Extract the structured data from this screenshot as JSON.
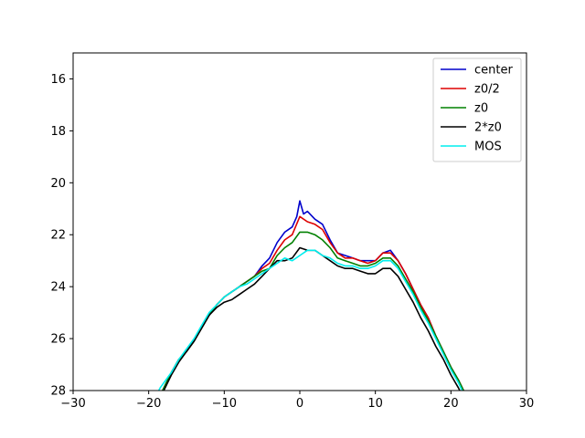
{
  "chart_data": {
    "type": "line",
    "title": "",
    "xlabel": "",
    "ylabel": "",
    "xlim": [
      -30,
      30
    ],
    "ylim": [
      28,
      15
    ],
    "y_inverted": true,
    "xticks": [
      -30,
      -20,
      -10,
      0,
      10,
      20,
      30
    ],
    "yticks": [
      16,
      18,
      20,
      22,
      24,
      26,
      28
    ],
    "grid": false,
    "legend_position": "top-right",
    "series": [
      {
        "name": "center",
        "color": "#0000cc",
        "points": [
          [
            -18.5,
            28.2
          ],
          [
            -18,
            27.9
          ],
          [
            -17,
            27.3
          ],
          [
            -16,
            26.8
          ],
          [
            -15,
            26.5
          ],
          [
            -14,
            26.1
          ],
          [
            -13,
            25.6
          ],
          [
            -12,
            25.1
          ],
          [
            -11,
            24.7
          ],
          [
            -10,
            24.4
          ],
          [
            -9,
            24.2
          ],
          [
            -8,
            24.0
          ],
          [
            -7,
            23.8
          ],
          [
            -6,
            23.6
          ],
          [
            -5,
            23.2
          ],
          [
            -4,
            22.9
          ],
          [
            -3,
            22.3
          ],
          [
            -2,
            21.9
          ],
          [
            -1,
            21.7
          ],
          [
            -0.4,
            21.3
          ],
          [
            0,
            20.7
          ],
          [
            0.5,
            21.2
          ],
          [
            1,
            21.1
          ],
          [
            2,
            21.4
          ],
          [
            3,
            21.6
          ],
          [
            4,
            22.2
          ],
          [
            5,
            22.7
          ],
          [
            6,
            22.8
          ],
          [
            7,
            22.9
          ],
          [
            8,
            23.0
          ],
          [
            9,
            23.0
          ],
          [
            10,
            23.0
          ],
          [
            11,
            22.7
          ],
          [
            12,
            22.6
          ],
          [
            13,
            23.0
          ],
          [
            14,
            23.5
          ],
          [
            15,
            24.1
          ],
          [
            16,
            24.7
          ],
          [
            17,
            25.2
          ],
          [
            18,
            25.9
          ],
          [
            19,
            26.5
          ],
          [
            20,
            27.1
          ],
          [
            21,
            27.6
          ],
          [
            22,
            28.2
          ]
        ]
      },
      {
        "name": "z0/2",
        "color": "#dd0000",
        "points": [
          [
            -18.5,
            28.2
          ],
          [
            -18,
            27.9
          ],
          [
            -17,
            27.3
          ],
          [
            -16,
            26.8
          ],
          [
            -15,
            26.5
          ],
          [
            -14,
            26.1
          ],
          [
            -13,
            25.6
          ],
          [
            -12,
            25.1
          ],
          [
            -11,
            24.7
          ],
          [
            -10,
            24.4
          ],
          [
            -9,
            24.2
          ],
          [
            -8,
            24.0
          ],
          [
            -7,
            23.8
          ],
          [
            -6,
            23.6
          ],
          [
            -5,
            23.3
          ],
          [
            -4,
            23.1
          ],
          [
            -3,
            22.6
          ],
          [
            -2,
            22.2
          ],
          [
            -1,
            22.0
          ],
          [
            0,
            21.3
          ],
          [
            1,
            21.5
          ],
          [
            2,
            21.6
          ],
          [
            3,
            21.8
          ],
          [
            4,
            22.3
          ],
          [
            5,
            22.7
          ],
          [
            6,
            22.9
          ],
          [
            7,
            22.9
          ],
          [
            8,
            23.0
          ],
          [
            9,
            23.1
          ],
          [
            10,
            23.0
          ],
          [
            11,
            22.7
          ],
          [
            12,
            22.7
          ],
          [
            13,
            23.0
          ],
          [
            14,
            23.5
          ],
          [
            15,
            24.1
          ],
          [
            16,
            24.7
          ],
          [
            17,
            25.2
          ],
          [
            18,
            25.9
          ],
          [
            19,
            26.5
          ],
          [
            20,
            27.1
          ],
          [
            21,
            27.6
          ],
          [
            22,
            28.2
          ]
        ]
      },
      {
        "name": "z0",
        "color": "#008000",
        "points": [
          [
            -18.5,
            28.2
          ],
          [
            -18,
            27.9
          ],
          [
            -17,
            27.3
          ],
          [
            -16,
            26.8
          ],
          [
            -15,
            26.5
          ],
          [
            -14,
            26.1
          ],
          [
            -13,
            25.6
          ],
          [
            -12,
            25.1
          ],
          [
            -11,
            24.7
          ],
          [
            -10,
            24.4
          ],
          [
            -9,
            24.2
          ],
          [
            -8,
            24.0
          ],
          [
            -7,
            23.8
          ],
          [
            -6,
            23.6
          ],
          [
            -5,
            23.4
          ],
          [
            -4,
            23.3
          ],
          [
            -3,
            22.8
          ],
          [
            -2,
            22.5
          ],
          [
            -1,
            22.3
          ],
          [
            0,
            21.9
          ],
          [
            1,
            21.9
          ],
          [
            2,
            22.0
          ],
          [
            3,
            22.2
          ],
          [
            4,
            22.5
          ],
          [
            5,
            22.9
          ],
          [
            6,
            23.0
          ],
          [
            7,
            23.1
          ],
          [
            8,
            23.2
          ],
          [
            9,
            23.2
          ],
          [
            10,
            23.1
          ],
          [
            11,
            22.9
          ],
          [
            12,
            22.9
          ],
          [
            13,
            23.2
          ],
          [
            14,
            23.7
          ],
          [
            15,
            24.2
          ],
          [
            16,
            24.8
          ],
          [
            17,
            25.3
          ],
          [
            18,
            25.9
          ],
          [
            19,
            26.5
          ],
          [
            20,
            27.1
          ],
          [
            21,
            27.6
          ],
          [
            22,
            28.2
          ]
        ]
      },
      {
        "name": "2*z0",
        "color": "#000000",
        "points": [
          [
            -18.5,
            28.2
          ],
          [
            -18,
            28.0
          ],
          [
            -17,
            27.4
          ],
          [
            -16,
            26.9
          ],
          [
            -15,
            26.5
          ],
          [
            -14,
            26.1
          ],
          [
            -13,
            25.6
          ],
          [
            -12,
            25.1
          ],
          [
            -11,
            24.8
          ],
          [
            -10,
            24.6
          ],
          [
            -9,
            24.5
          ],
          [
            -8,
            24.3
          ],
          [
            -7,
            24.1
          ],
          [
            -6,
            23.9
          ],
          [
            -5,
            23.6
          ],
          [
            -4,
            23.3
          ],
          [
            -3,
            23.0
          ],
          [
            -2,
            23.0
          ],
          [
            -1,
            22.9
          ],
          [
            0,
            22.5
          ],
          [
            1,
            22.6
          ],
          [
            2,
            22.6
          ],
          [
            3,
            22.8
          ],
          [
            4,
            23.0
          ],
          [
            5,
            23.2
          ],
          [
            6,
            23.3
          ],
          [
            7,
            23.3
          ],
          [
            8,
            23.4
          ],
          [
            9,
            23.5
          ],
          [
            10,
            23.5
          ],
          [
            11,
            23.3
          ],
          [
            12,
            23.3
          ],
          [
            13,
            23.6
          ],
          [
            14,
            24.1
          ],
          [
            15,
            24.6
          ],
          [
            16,
            25.2
          ],
          [
            17,
            25.7
          ],
          [
            18,
            26.3
          ],
          [
            19,
            26.8
          ],
          [
            20,
            27.4
          ],
          [
            21,
            27.9
          ],
          [
            21.5,
            28.2
          ]
        ]
      },
      {
        "name": "MOS",
        "color": "#00eeee",
        "points": [
          [
            -19,
            28.2
          ],
          [
            -18.5,
            27.9
          ],
          [
            -17,
            27.3
          ],
          [
            -16,
            26.8
          ],
          [
            -15,
            26.4
          ],
          [
            -14,
            26.0
          ],
          [
            -13,
            25.5
          ],
          [
            -12,
            25.0
          ],
          [
            -11,
            24.7
          ],
          [
            -10,
            24.4
          ],
          [
            -9,
            24.2
          ],
          [
            -8,
            24.0
          ],
          [
            -7,
            23.9
          ],
          [
            -6,
            23.7
          ],
          [
            -5,
            23.5
          ],
          [
            -4,
            23.3
          ],
          [
            -3,
            23.1
          ],
          [
            -2,
            22.9
          ],
          [
            -1,
            23.0
          ],
          [
            0,
            22.8
          ],
          [
            1,
            22.6
          ],
          [
            2,
            22.6
          ],
          [
            3,
            22.8
          ],
          [
            4,
            22.9
          ],
          [
            5,
            23.1
          ],
          [
            6,
            23.2
          ],
          [
            7,
            23.2
          ],
          [
            8,
            23.3
          ],
          [
            9,
            23.3
          ],
          [
            10,
            23.2
          ],
          [
            11,
            23.0
          ],
          [
            12,
            23.0
          ],
          [
            13,
            23.3
          ],
          [
            14,
            23.8
          ],
          [
            15,
            24.3
          ],
          [
            16,
            24.9
          ],
          [
            17,
            25.4
          ],
          [
            18,
            26.0
          ],
          [
            19,
            26.6
          ],
          [
            20,
            27.2
          ],
          [
            21,
            27.7
          ],
          [
            21.8,
            28.2
          ]
        ]
      }
    ]
  }
}
